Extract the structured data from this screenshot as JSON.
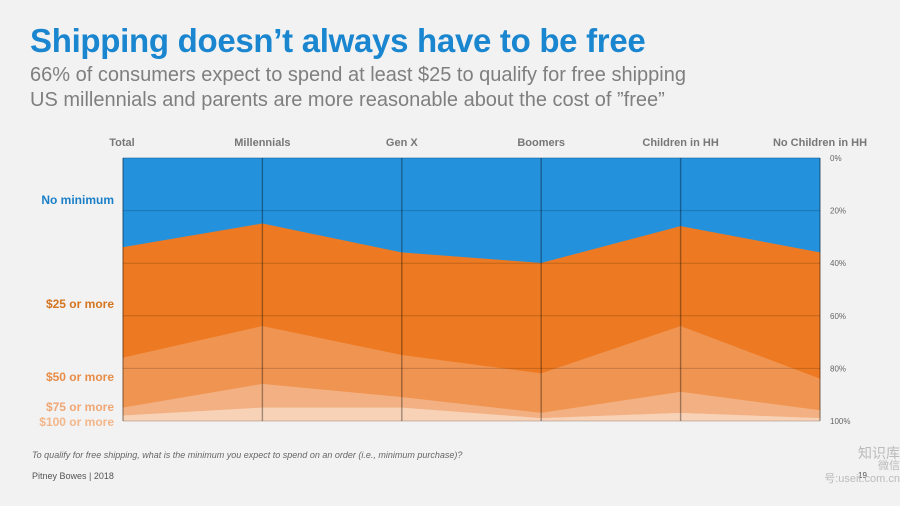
{
  "header": {
    "title": "Shipping doesn’t always have to be free",
    "subtitle_1": "66% of consumers expect to spend at least $25 to qualify for free shipping",
    "subtitle_2": "US millennials and parents are more reasonable about the cost of ”free”"
  },
  "footnote": "To qualify for free shipping, what is the minimum you expect to spend on an order (i.e., minimum purchase)?",
  "footer": "Pitney Bowes | 2018",
  "page_number": "19",
  "watermark": {
    "line1": "知识库",
    "line2": "微信号:useit.com.cn"
  },
  "chart_data": {
    "type": "area",
    "stacked": true,
    "orientation": "y-axis right, inverted 0% at top",
    "categories": [
      "Total",
      "Millennials",
      "Gen X",
      "Boomers",
      "Children in HH",
      "No Children in HH"
    ],
    "ylim": [
      0,
      100
    ],
    "y_ticks": [
      "0%",
      "20%",
      "40%",
      "60%",
      "80%",
      "100%"
    ],
    "grid": true,
    "series": [
      {
        "name": "No minimum",
        "color": "#2491dd",
        "label_color": "#1a7fc7",
        "values": [
          34,
          25,
          36,
          40,
          26,
          36
        ]
      },
      {
        "name": "$25 or more",
        "color": "#ed7a22",
        "label_color": "#d4741f",
        "values": [
          42,
          39,
          39,
          42,
          38,
          48
        ]
      },
      {
        "name": "$50 or more",
        "color": "#f09451",
        "label_color": "#e88c46",
        "values": [
          19,
          22,
          16,
          15,
          25,
          12
        ]
      },
      {
        "name": "$75 or more",
        "color": "#f3b183",
        "label_color": "#f0a775",
        "values": [
          3,
          9,
          4,
          2,
          8,
          3
        ]
      },
      {
        "name": "$100 or more",
        "color": "#f7d2b6",
        "label_color": "#f3b68a",
        "values": [
          2,
          5,
          5,
          1,
          3,
          1
        ]
      }
    ]
  }
}
